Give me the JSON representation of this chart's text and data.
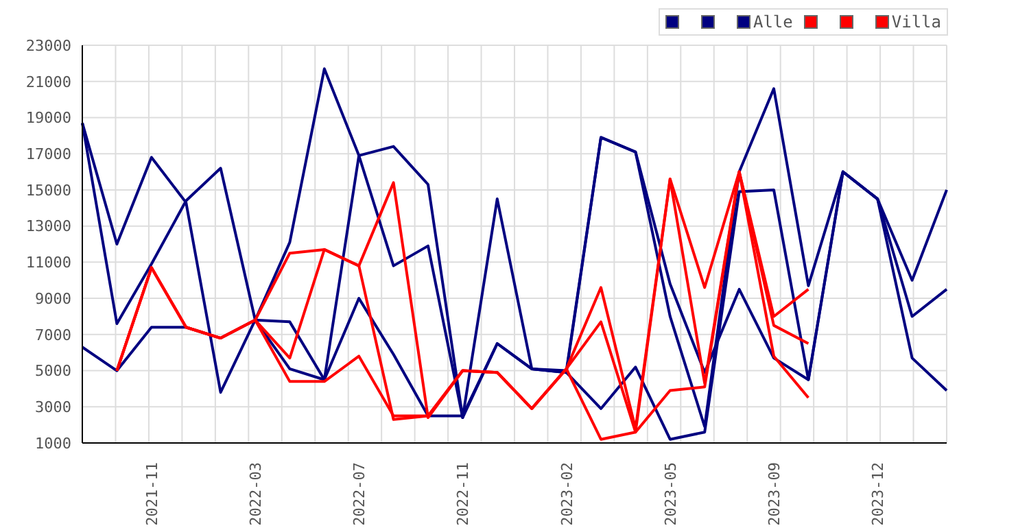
{
  "chart_data": {
    "type": "line",
    "categories": [
      null,
      null,
      "2021-11",
      null,
      null,
      "2022-03",
      null,
      null,
      "2022-07",
      null,
      null,
      "2022-11",
      null,
      null,
      "2023-02",
      null,
      null,
      "2023-05",
      null,
      null,
      "2023-09",
      null,
      null,
      "2023-12",
      null,
      null
    ],
    "series": [
      {
        "color": "#000080",
        "values": [
          18700,
          12000,
          16800,
          14300,
          3800,
          7800,
          5100,
          4500,
          16900,
          17400,
          15300,
          2400,
          14500,
          5100,
          5000,
          17900,
          17100,
          8000,
          1900,
          16000,
          20600,
          9700,
          16000,
          14500,
          10000,
          15000
        ]
      },
      {
        "color": "#000080",
        "values": [
          18700,
          7600,
          10900,
          14400,
          16200,
          7800,
          12100,
          21700,
          16900,
          10800,
          11900,
          2400,
          6500,
          5100,
          4900,
          2900,
          5200,
          1200,
          1600,
          14900,
          15000,
          4500,
          16000,
          14500,
          8000,
          9500
        ]
      },
      {
        "name": "Alle",
        "color": "#000080",
        "values": [
          6300,
          5000,
          7400,
          7400,
          6800,
          7800,
          7700,
          4500,
          9000,
          5900,
          2500,
          2500,
          6500,
          5100,
          4900,
          17900,
          17100,
          9800,
          4900,
          9500,
          5700,
          4500,
          16000,
          14500,
          5700,
          3900
        ]
      },
      {
        "color": "#ff0000",
        "values": [
          null,
          5000,
          10700,
          7400,
          6800,
          7800,
          11500,
          11700,
          10800,
          15400,
          2400,
          5000,
          4900,
          2900,
          5100,
          9600,
          1800,
          15600,
          9600,
          16000,
          8000,
          9500,
          null,
          null,
          null,
          null
        ]
      },
      {
        "color": "#ff0000",
        "values": [
          null,
          5000,
          10700,
          7400,
          6800,
          7800,
          5700,
          11700,
          10800,
          2300,
          2500,
          5000,
          4900,
          2900,
          5100,
          7700,
          1600,
          15600,
          4300,
          16000,
          7500,
          6500,
          null,
          null,
          null,
          null
        ]
      },
      {
        "name": "Villa",
        "color": "#ff0000",
        "values": [
          null,
          5000,
          10700,
          7400,
          6800,
          7800,
          4400,
          4400,
          5800,
          2500,
          2500,
          5000,
          4900,
          2900,
          5100,
          1200,
          1600,
          3900,
          4100,
          16000,
          5800,
          3500,
          null,
          null,
          null,
          null
        ]
      }
    ],
    "ylim": [
      1000,
      23000
    ],
    "yticks": [
      1000,
      3000,
      5000,
      7000,
      9000,
      11000,
      13000,
      15000,
      17000,
      19000,
      21000,
      23000
    ],
    "grid": true,
    "legend": "top right",
    "marker": "none",
    "line_style": "solid"
  }
}
